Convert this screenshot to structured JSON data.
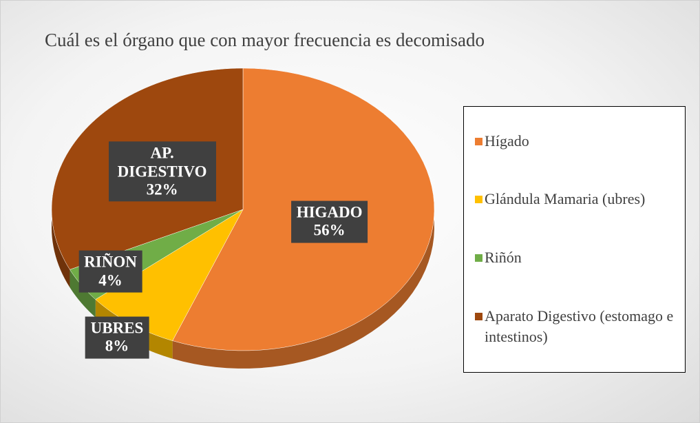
{
  "chart_data": {
    "type": "pie",
    "title": "Cuál es el órgano que con mayor frecuencia es decomisado",
    "categories": [
      "Hígado",
      "Glándula Mamaria (ubres)",
      "Riñón",
      "Aparato Digestivo (estomago e intestinos)"
    ],
    "values": [
      56,
      8,
      4,
      32
    ],
    "value_labels": [
      "56%",
      "8%",
      "4%",
      "32%"
    ],
    "label_names": [
      "HIGADO",
      "UBRES",
      "RIÑON",
      "AP. DIGESTIVO"
    ],
    "colors": [
      "#ED7D31",
      "#FFC000",
      "#70AD47",
      "#9E480E"
    ],
    "legend": "right"
  }
}
